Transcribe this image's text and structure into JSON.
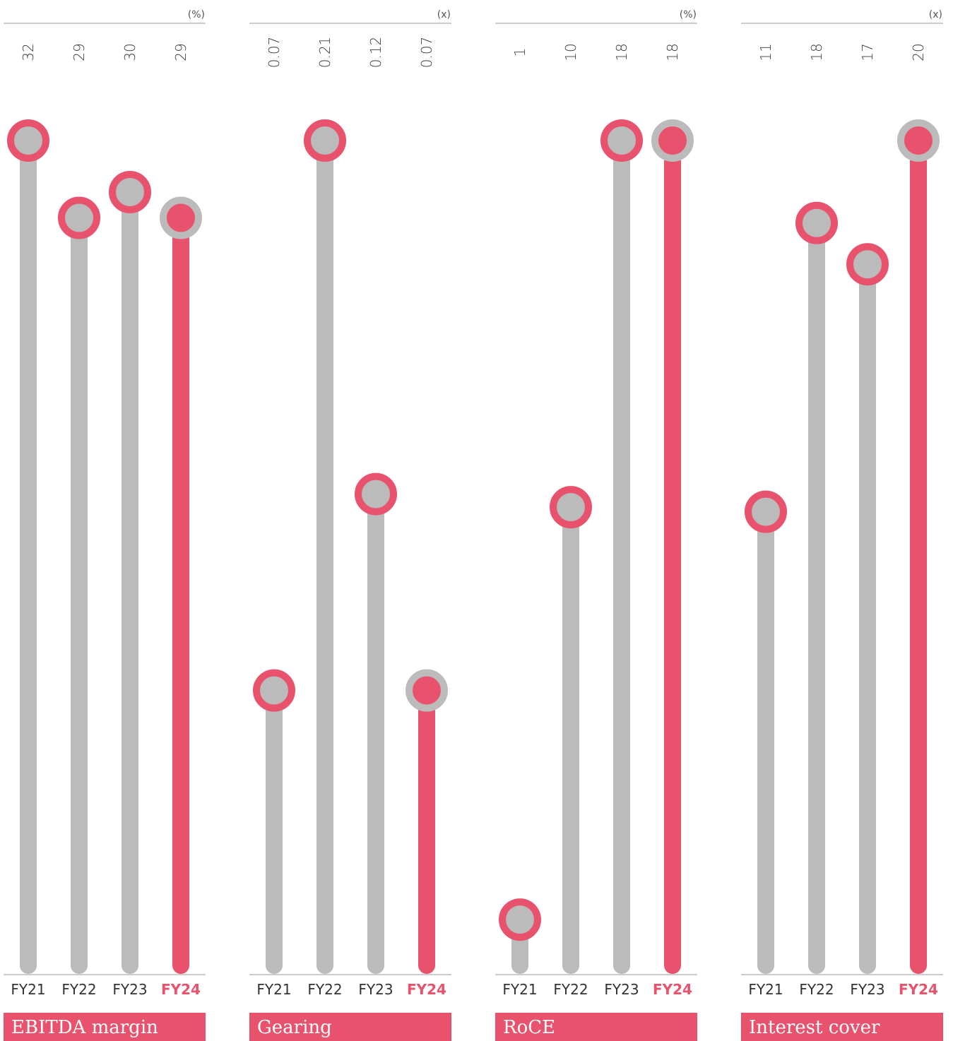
{
  "colors": {
    "highlight": "#e8526c",
    "muted": "#bbbbbb",
    "rule": "#9a9a9a"
  },
  "chart_data": [
    {
      "type": "lollipop",
      "title": "EBITDA margin",
      "unit": "(%)",
      "categories": [
        "FY21",
        "FY22",
        "FY23",
        "FY24"
      ],
      "values": [
        32,
        29,
        30,
        29
      ],
      "value_labels": [
        "32",
        "29",
        "30",
        "29"
      ],
      "highlight": "FY24",
      "ylim": [
        0,
        32
      ]
    },
    {
      "type": "lollipop",
      "title": "Gearing",
      "unit": "(x)",
      "categories": [
        "FY21",
        "FY22",
        "FY23",
        "FY24"
      ],
      "values": [
        0.07,
        0.21,
        0.12,
        0.07
      ],
      "value_labels": [
        "0.07",
        "0.21",
        "0.12",
        "0.07"
      ],
      "highlight": "FY24",
      "ylim": [
        0,
        0.21
      ]
    },
    {
      "type": "lollipop",
      "title": "RoCE",
      "unit": "(%)",
      "categories": [
        "FY21",
        "FY22",
        "FY23",
        "FY24"
      ],
      "values": [
        1,
        10,
        18,
        18
      ],
      "value_labels": [
        "1",
        "10",
        "18",
        "18"
      ],
      "highlight": "FY24",
      "ylim": [
        0,
        18
      ]
    },
    {
      "type": "lollipop",
      "title": "Interest cover",
      "unit": "(x)",
      "categories": [
        "FY21",
        "FY22",
        "FY23",
        "FY24"
      ],
      "values": [
        11,
        18,
        17,
        20
      ],
      "value_labels": [
        "11",
        "18",
        "17",
        "20"
      ],
      "highlight": "FY24",
      "ylim": [
        0,
        20
      ]
    }
  ]
}
